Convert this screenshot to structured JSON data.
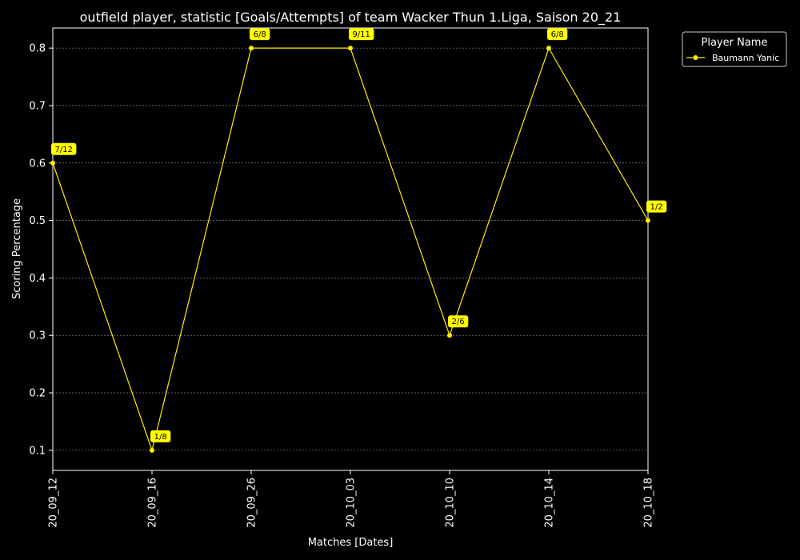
{
  "chart_data": {
    "type": "line",
    "title": "outfield player, statistic [Goals/Attempts] of team Wacker Thun 1.Liga, Saison 20_21",
    "xlabel": "Matches [Dates]",
    "ylabel": "Scoring Percentage",
    "categories": [
      "20_09_12",
      "20_09_16",
      "20_09_26",
      "20_10_03",
      "20_10_10",
      "20_10_14",
      "20_10_18"
    ],
    "series": [
      {
        "name": "Baumann Yanic",
        "values": [
          0.6,
          0.1,
          0.8,
          0.8,
          0.3,
          0.8,
          0.5
        ],
        "annotations": [
          "7/12",
          "1/8",
          "6/8",
          "9/11",
          "2/6",
          "6/8",
          "1/2"
        ],
        "color": "#ffee00"
      }
    ],
    "ylim": [
      0.065,
      0.835
    ],
    "yticks": [
      0.1,
      0.2,
      0.3,
      0.4,
      0.5,
      0.6,
      0.7,
      0.8
    ],
    "grid": "horizontal-dashed",
    "legend": {
      "title": "Player Name",
      "placement": "outside-top-right"
    },
    "annotation_bg": "#ffff00",
    "background": "#000000",
    "text_color": "#ffffff"
  }
}
